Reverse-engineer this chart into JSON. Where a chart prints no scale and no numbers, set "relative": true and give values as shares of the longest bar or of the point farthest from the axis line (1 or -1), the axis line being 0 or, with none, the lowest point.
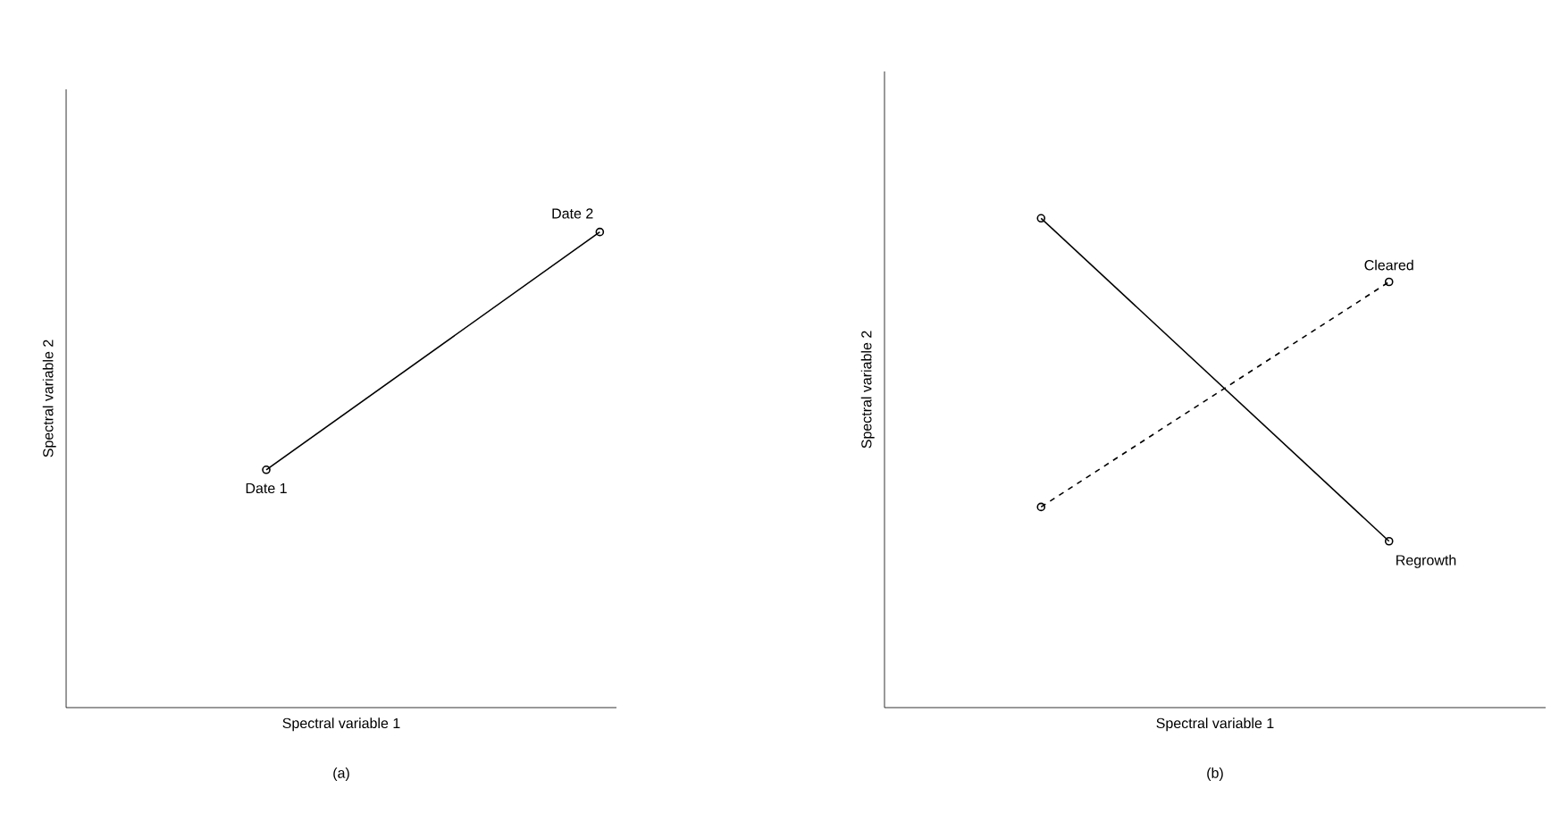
{
  "chart_data": [
    {
      "type": "line",
      "title": "(a)",
      "xlabel": "Spectral variable 1",
      "ylabel": "Spectral variable 2",
      "relative": true,
      "marker": "circle",
      "categories": [
        null,
        null
      ],
      "series": [
        {
          "color": "#000000",
          "values": [
            0.5,
            1
          ],
          "line_style": "solid"
        }
      ],
      "annotations": [
        {
          "text": "Date 1"
        },
        {
          "text": "Date 2"
        }
      ]
    },
    {
      "type": "line",
      "title": "(b)",
      "xlabel": "Spectral variable 1",
      "ylabel": "Spectral variable 2",
      "relative": true,
      "marker": "circle",
      "categories": [
        null,
        null
      ],
      "series": [
        {
          "name": "Cleared",
          "color": "#000000",
          "values": [
            0.41,
            0.87
          ],
          "line_style": "dashed"
        },
        {
          "name": "Regrowth",
          "color": "#000000",
          "values": [
            1,
            0.34
          ],
          "line_style": "solid"
        }
      ]
    }
  ]
}
